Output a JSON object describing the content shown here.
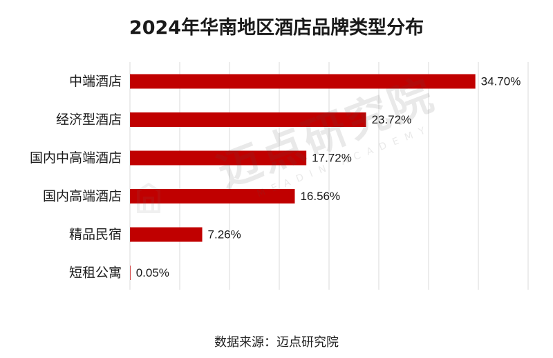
{
  "title": "2024年华南地区酒店品牌类型分布",
  "source": "数据来源：迈点研究院",
  "watermark": {
    "main": "迈点研究院",
    "sub": "MEADIN ACADEMY"
  },
  "colors": {
    "bar": "#c00000",
    "grid": "#d9d9d9",
    "label": "#1a1a1a"
  },
  "chart_data": {
    "type": "bar",
    "orientation": "horizontal",
    "title": "2024年华南地区酒店品牌类型分布",
    "categories": [
      "中端酒店",
      "经济型酒店",
      "国内中高端酒店",
      "国内高端酒店",
      "精品民宿",
      "短租公寓"
    ],
    "values": [
      34.7,
      23.72,
      17.72,
      16.56,
      7.26,
      0.05
    ],
    "value_labels": [
      "34.70%",
      "23.72%",
      "17.72%",
      "16.56%",
      "7.26%",
      "0.05%"
    ],
    "xlim": [
      0,
      40
    ],
    "x_grid_step": 5,
    "grid": true,
    "xlabel": "",
    "ylabel": ""
  }
}
